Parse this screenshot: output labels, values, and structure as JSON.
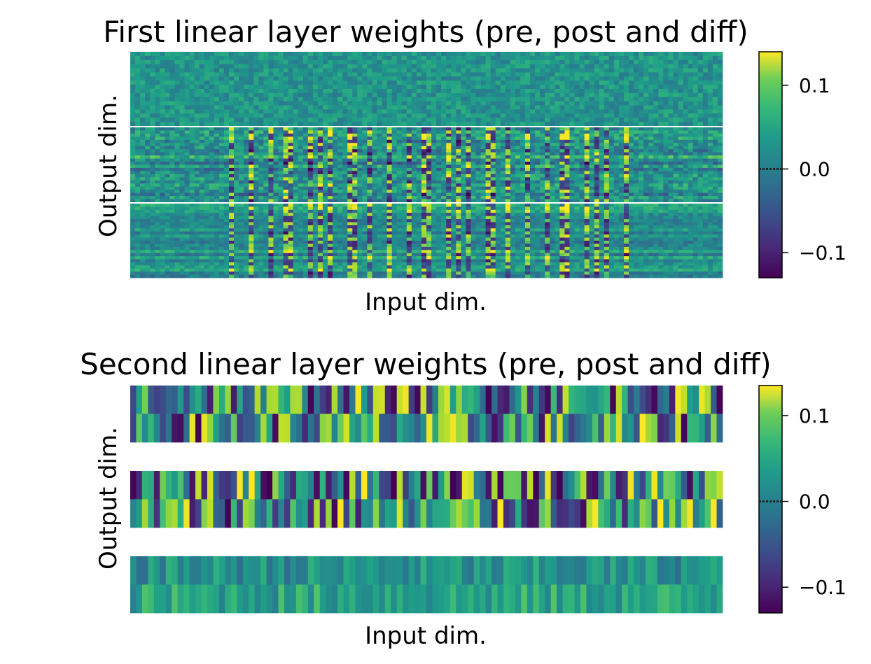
{
  "chart_data": [
    {
      "type": "heatmap",
      "title": "First linear layer weights (pre, post and diff)",
      "xlabel": "Input dim.",
      "ylabel": "Output dim.",
      "colormap": "viridis",
      "xticks_visible": false,
      "yticks_visible": false,
      "grid": false,
      "panels": [
        "pre",
        "post",
        "diff"
      ],
      "colorbar": {
        "vmin": -0.13,
        "vmax": 0.14,
        "ticks": [
          0.1,
          0.0,
          -0.1
        ],
        "tick_labels": [
          "0.1",
          "0.0",
          "−0.1"
        ]
      }
    },
    {
      "type": "heatmap",
      "title": "Second linear layer weights (pre, post and diff)",
      "xlabel": "Input dim.",
      "ylabel": "Output dim.",
      "colormap": "viridis",
      "xticks_visible": false,
      "yticks_visible": false,
      "grid": false,
      "panels": [
        "pre",
        "post",
        "diff"
      ],
      "rows_per_panel": 2,
      "columns": 100,
      "colorbar": {
        "vmin": -0.13,
        "vmax": 0.135,
        "ticks": [
          0.1,
          0.0,
          -0.1
        ],
        "tick_labels": [
          "0.1",
          "0.0",
          "−0.1"
        ]
      }
    }
  ]
}
